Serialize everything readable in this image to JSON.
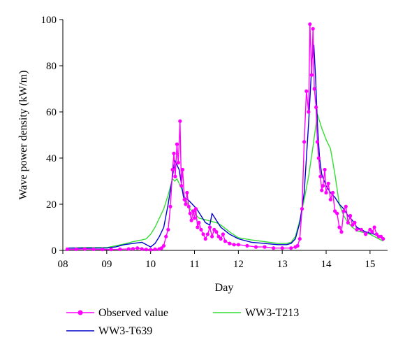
{
  "chart_data": {
    "type": "line",
    "xlabel": "Day",
    "ylabel": "Wave power density (kW/m)",
    "xlim": [
      8.0,
      15.4
    ],
    "ylim": [
      0,
      100
    ],
    "x_ticks": [
      8,
      9,
      10,
      11,
      12,
      13,
      14,
      15
    ],
    "x_tick_labels": [
      "08",
      "09",
      "10",
      "11",
      "12",
      "13",
      "14",
      "15"
    ],
    "y_ticks": [
      0,
      20,
      40,
      60,
      80,
      100
    ],
    "y_tick_labels": [
      "0",
      "20",
      "40",
      "60",
      "80",
      "100"
    ],
    "grid": false,
    "legend_position": "bottom",
    "series": [
      {
        "name": "Observed value",
        "color": "#ff00ff",
        "marker": "circle",
        "points": [
          [
            8.1,
            0.5
          ],
          [
            8.3,
            0.5
          ],
          [
            8.5,
            0.6
          ],
          [
            8.7,
            0.5
          ],
          [
            8.9,
            0.4
          ],
          [
            9.1,
            0.4
          ],
          [
            9.3,
            0.5
          ],
          [
            9.5,
            0.6
          ],
          [
            9.6,
            0.7
          ],
          [
            9.7,
            1.0
          ],
          [
            9.8,
            0.6
          ],
          [
            9.9,
            0.4
          ],
          [
            10.0,
            0.3
          ],
          [
            10.1,
            0.5
          ],
          [
            10.2,
            0.6
          ],
          [
            10.25,
            1.0
          ],
          [
            10.3,
            2.0
          ],
          [
            10.35,
            6.0
          ],
          [
            10.4,
            9.0
          ],
          [
            10.45,
            19.0
          ],
          [
            10.5,
            35.0
          ],
          [
            10.53,
            42.0
          ],
          [
            10.56,
            32.0
          ],
          [
            10.6,
            46.0
          ],
          [
            10.63,
            38.0
          ],
          [
            10.67,
            56.0
          ],
          [
            10.7,
            28.0
          ],
          [
            10.73,
            35.0
          ],
          [
            10.77,
            22.0
          ],
          [
            10.8,
            20.0
          ],
          [
            10.83,
            25.0
          ],
          [
            10.87,
            19.0
          ],
          [
            10.9,
            16.0
          ],
          [
            10.93,
            13.0
          ],
          [
            10.97,
            17.0
          ],
          [
            11.0,
            14.0
          ],
          [
            11.03,
            18.0
          ],
          [
            11.07,
            10.0
          ],
          [
            11.1,
            12.0
          ],
          [
            11.15,
            9.0
          ],
          [
            11.2,
            7.0
          ],
          [
            11.25,
            5.0
          ],
          [
            11.3,
            7.0
          ],
          [
            11.35,
            10.0
          ],
          [
            11.4,
            6.0
          ],
          [
            11.45,
            9.0
          ],
          [
            11.5,
            8.0
          ],
          [
            11.55,
            6.0
          ],
          [
            11.6,
            5.0
          ],
          [
            11.65,
            7.0
          ],
          [
            11.7,
            4.0
          ],
          [
            11.8,
            3.0
          ],
          [
            11.9,
            2.5
          ],
          [
            12.0,
            2.5
          ],
          [
            12.2,
            2.0
          ],
          [
            12.4,
            1.5
          ],
          [
            12.6,
            1.5
          ],
          [
            12.8,
            1.0
          ],
          [
            13.0,
            1.0
          ],
          [
            13.2,
            1.0
          ],
          [
            13.3,
            1.5
          ],
          [
            13.35,
            2.0
          ],
          [
            13.4,
            5.0
          ],
          [
            13.45,
            18.0
          ],
          [
            13.5,
            47.0
          ],
          [
            13.55,
            69.0
          ],
          [
            13.6,
            60.0
          ],
          [
            13.63,
            98.0
          ],
          [
            13.67,
            76.0
          ],
          [
            13.7,
            96.0
          ],
          [
            13.73,
            70.0
          ],
          [
            13.77,
            62.0
          ],
          [
            13.8,
            47.0
          ],
          [
            13.83,
            40.0
          ],
          [
            13.87,
            32.0
          ],
          [
            13.9,
            26.0
          ],
          [
            13.93,
            28.0
          ],
          [
            13.97,
            35.0
          ],
          [
            14.0,
            25.0
          ],
          [
            14.05,
            29.0
          ],
          [
            14.1,
            22.0
          ],
          [
            14.15,
            25.0
          ],
          [
            14.2,
            17.0
          ],
          [
            14.25,
            16.0
          ],
          [
            14.3,
            10.0
          ],
          [
            14.35,
            8.0
          ],
          [
            14.4,
            17.0
          ],
          [
            14.45,
            19.0
          ],
          [
            14.5,
            12.0
          ],
          [
            14.55,
            15.0
          ],
          [
            14.6,
            11.0
          ],
          [
            14.65,
            12.0
          ],
          [
            14.7,
            9.0
          ],
          [
            14.8,
            9.0
          ],
          [
            14.9,
            7.0
          ],
          [
            15.0,
            9.0
          ],
          [
            15.05,
            8.0
          ],
          [
            15.1,
            10.0
          ],
          [
            15.15,
            7.0
          ],
          [
            15.2,
            6.0
          ],
          [
            15.25,
            6.0
          ],
          [
            15.3,
            5.0
          ]
        ]
      },
      {
        "name": "WW3-T639",
        "color": "#0000cc",
        "points": [
          [
            8.1,
            1.0
          ],
          [
            8.5,
            1.0
          ],
          [
            9.0,
            1.0
          ],
          [
            9.2,
            1.5
          ],
          [
            9.4,
            2.5
          ],
          [
            9.6,
            3.0
          ],
          [
            9.8,
            3.5
          ],
          [
            9.9,
            2.5
          ],
          [
            10.0,
            1.5
          ],
          [
            10.1,
            3.0
          ],
          [
            10.2,
            6.0
          ],
          [
            10.3,
            10.0
          ],
          [
            10.4,
            20.0
          ],
          [
            10.5,
            32.0
          ],
          [
            10.55,
            39.0
          ],
          [
            10.6,
            37.0
          ],
          [
            10.65,
            35.0
          ],
          [
            10.7,
            29.0
          ],
          [
            10.75,
            23.0
          ],
          [
            10.85,
            22.0
          ],
          [
            10.95,
            20.0
          ],
          [
            11.05,
            18.0
          ],
          [
            11.15,
            15.0
          ],
          [
            11.25,
            12.0
          ],
          [
            11.35,
            11.0
          ],
          [
            11.4,
            16.0
          ],
          [
            11.5,
            13.0
          ],
          [
            11.6,
            10.0
          ],
          [
            11.8,
            7.0
          ],
          [
            12.0,
            5.0
          ],
          [
            12.3,
            3.5
          ],
          [
            12.6,
            3.0
          ],
          [
            12.9,
            2.5
          ],
          [
            13.1,
            2.5
          ],
          [
            13.2,
            3.0
          ],
          [
            13.3,
            5.0
          ],
          [
            13.4,
            12.0
          ],
          [
            13.5,
            25.0
          ],
          [
            13.6,
            55.0
          ],
          [
            13.68,
            83.0
          ],
          [
            13.72,
            89.0
          ],
          [
            13.76,
            75.0
          ],
          [
            13.8,
            55.0
          ],
          [
            13.85,
            40.0
          ],
          [
            13.9,
            33.0
          ],
          [
            14.0,
            28.0
          ],
          [
            14.1,
            25.0
          ],
          [
            14.2,
            23.0
          ],
          [
            14.3,
            20.0
          ],
          [
            14.4,
            18.0
          ],
          [
            14.5,
            15.0
          ],
          [
            14.6,
            13.0
          ],
          [
            14.7,
            10.0
          ],
          [
            14.8,
            9.0
          ],
          [
            14.9,
            8.0
          ],
          [
            15.0,
            7.5
          ],
          [
            15.1,
            7.0
          ],
          [
            15.2,
            6.0
          ],
          [
            15.3,
            5.0
          ]
        ]
      },
      {
        "name": "WW3-T213",
        "color": "#33dd33",
        "points": [
          [
            8.1,
            1.0
          ],
          [
            8.5,
            1.2
          ],
          [
            9.0,
            1.2
          ],
          [
            9.2,
            2.0
          ],
          [
            9.4,
            2.8
          ],
          [
            9.6,
            3.8
          ],
          [
            9.8,
            4.5
          ],
          [
            9.9,
            5.0
          ],
          [
            10.0,
            7.0
          ],
          [
            10.1,
            10.0
          ],
          [
            10.2,
            14.0
          ],
          [
            10.3,
            18.0
          ],
          [
            10.4,
            24.0
          ],
          [
            10.5,
            31.0
          ],
          [
            10.55,
            30.0
          ],
          [
            10.6,
            31.0
          ],
          [
            10.65,
            29.0
          ],
          [
            10.7,
            27.0
          ],
          [
            10.8,
            22.0
          ],
          [
            10.9,
            18.0
          ],
          [
            11.0,
            16.0
          ],
          [
            11.1,
            14.0
          ],
          [
            11.2,
            13.5
          ],
          [
            11.3,
            13.0
          ],
          [
            11.5,
            12.0
          ],
          [
            11.6,
            11.0
          ],
          [
            11.8,
            8.0
          ],
          [
            12.0,
            5.5
          ],
          [
            12.3,
            4.5
          ],
          [
            12.6,
            3.8
          ],
          [
            12.9,
            3.0
          ],
          [
            13.1,
            3.0
          ],
          [
            13.2,
            3.5
          ],
          [
            13.3,
            6.0
          ],
          [
            13.4,
            13.0
          ],
          [
            13.5,
            22.0
          ],
          [
            13.6,
            32.0
          ],
          [
            13.7,
            45.0
          ],
          [
            13.8,
            59.0
          ],
          [
            13.85,
            56.0
          ],
          [
            13.9,
            53.0
          ],
          [
            14.0,
            48.0
          ],
          [
            14.1,
            44.0
          ],
          [
            14.2,
            33.0
          ],
          [
            14.3,
            20.0
          ],
          [
            14.4,
            15.0
          ],
          [
            14.5,
            12.0
          ],
          [
            14.6,
            10.0
          ],
          [
            14.7,
            8.5
          ],
          [
            14.8,
            8.0
          ],
          [
            14.9,
            7.5
          ],
          [
            15.0,
            7.0
          ],
          [
            15.1,
            6.0
          ],
          [
            15.2,
            5.0
          ],
          [
            15.3,
            4.0
          ]
        ]
      }
    ]
  }
}
